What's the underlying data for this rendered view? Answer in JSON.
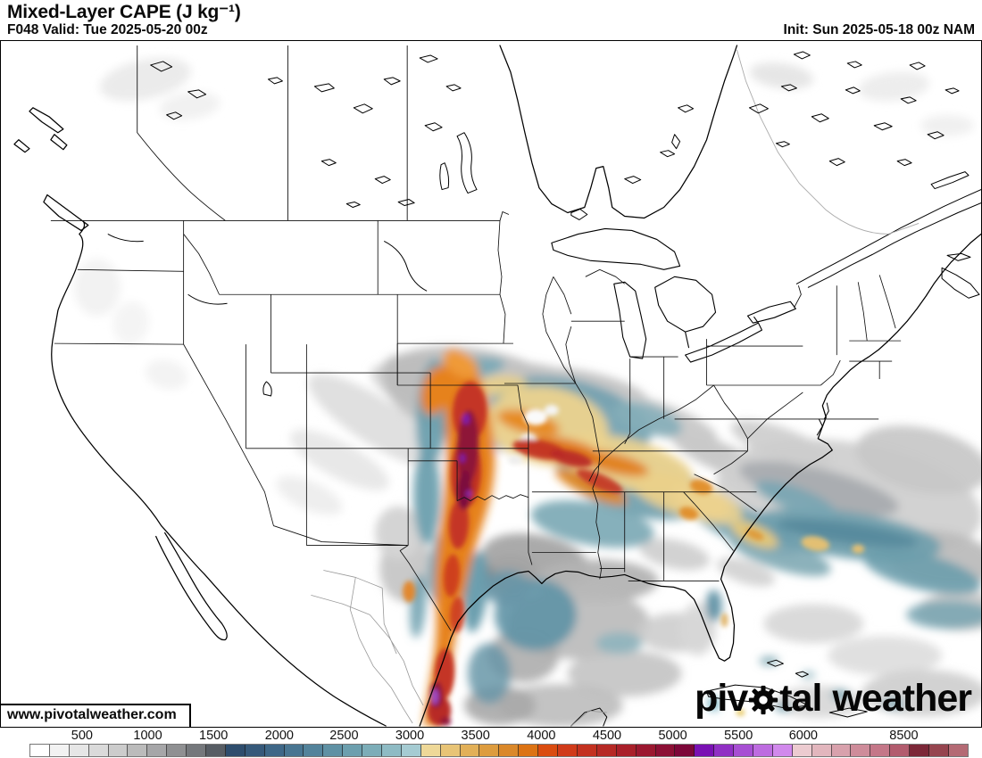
{
  "header": {
    "title": "Mixed-Layer CAPE (J kg⁻¹)",
    "valid": "F048 Valid: Tue 2025-05-20 00z",
    "init": "Init: Sun 2025-05-18 00z NAM"
  },
  "watermark": {
    "url_label": "www.pivotalweather.com"
  },
  "logo": {
    "part1": "piv",
    "part2": "tal",
    "word2": "weather",
    "gear_icon": "gear"
  },
  "colorbar": {
    "ticks": [
      {
        "label": "500",
        "pct": 5.6
      },
      {
        "label": "1000",
        "pct": 12.6
      },
      {
        "label": "1500",
        "pct": 19.6
      },
      {
        "label": "2000",
        "pct": 26.6
      },
      {
        "label": "2500",
        "pct": 33.5
      },
      {
        "label": "3000",
        "pct": 40.5
      },
      {
        "label": "3500",
        "pct": 47.5
      },
      {
        "label": "4000",
        "pct": 54.5
      },
      {
        "label": "4500",
        "pct": 61.5
      },
      {
        "label": "5000",
        "pct": 68.5
      },
      {
        "label": "5500",
        "pct": 75.5
      },
      {
        "label": "6000",
        "pct": 82.4
      },
      {
        "label": "8500",
        "pct": 93.1
      }
    ],
    "cells": [
      "#ffffff",
      "#f2f2f2",
      "#e6e6e6",
      "#dadada",
      "#cccccc",
      "#bbbbbb",
      "#a6a6a8",
      "#8f9092",
      "#75787c",
      "#575d64",
      "#2e4d6d",
      "#36597a",
      "#3e6787",
      "#487591",
      "#53839b",
      "#5f91a4",
      "#6c9fae",
      "#7cadb8",
      "#8ebbc4",
      "#a5cbd2",
      "#eed898",
      "#e8c476",
      "#e2b058",
      "#dd9c3e",
      "#da882a",
      "#dc7314",
      "#da4c10",
      "#d03b1a",
      "#c33120",
      "#b62925",
      "#a9202a",
      "#9b1830",
      "#8c1035",
      "#7c0739",
      "#7911b3",
      "#9030c4",
      "#a74fd3",
      "#bd6ce0",
      "#d189ec",
      "#eccbd0",
      "#e2b6bd",
      "#d8a1ac",
      "#ce8c9a",
      "#c47788",
      "#b25c6e",
      "#7c2838",
      "#96454f",
      "#b46a74"
    ]
  },
  "map": {
    "accent_colors": {
      "low_gray": "#bdbdbd",
      "marine_teal": "#6c9dac",
      "moderate_tan": "#ecd38e",
      "high_orange": "#e6821c",
      "extreme_red": "#c23322",
      "max_maroon": "#8e1238",
      "ultra_violet": "#8a2ac0"
    }
  }
}
